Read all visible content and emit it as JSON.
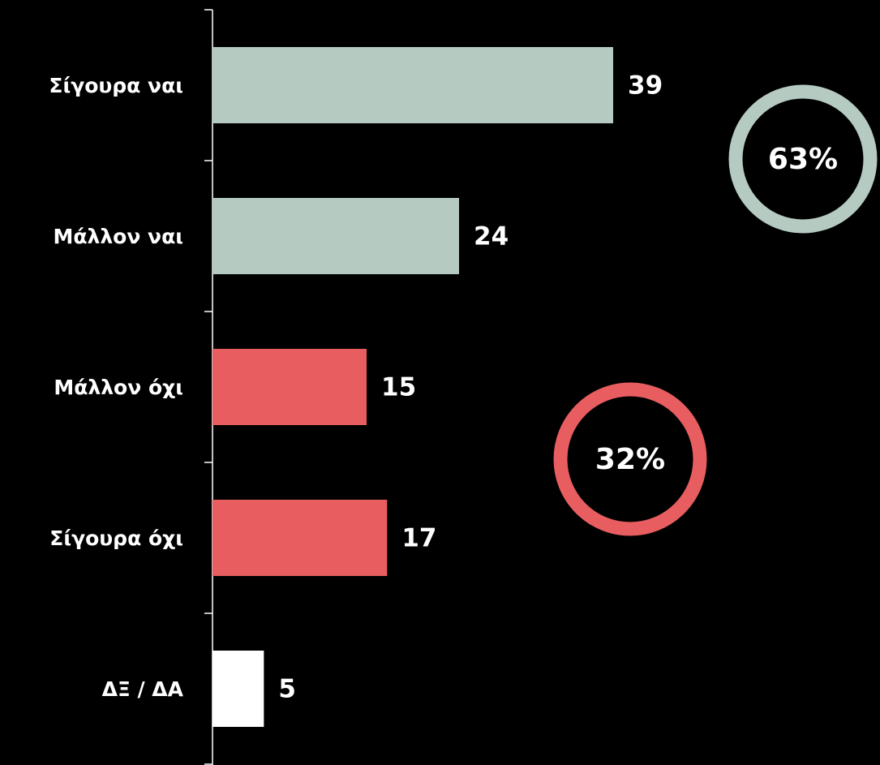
{
  "chart_data": {
    "type": "bar",
    "orientation": "horizontal",
    "categories": [
      "Σίγουρα ναι",
      "Μάλλον ναι",
      "Μάλλον όχι",
      "Σίγουρα όχι",
      "ΔΞ / ΔΑ"
    ],
    "values": [
      39,
      24,
      15,
      17,
      5
    ],
    "colors": [
      "#b5cac1",
      "#b5cac1",
      "#e85d60",
      "#e85d60",
      "#ffffff"
    ],
    "annotations": [
      {
        "text": "63%",
        "color": "#b5cac1"
      },
      {
        "text": "32%",
        "color": "#e85d60"
      }
    ]
  }
}
